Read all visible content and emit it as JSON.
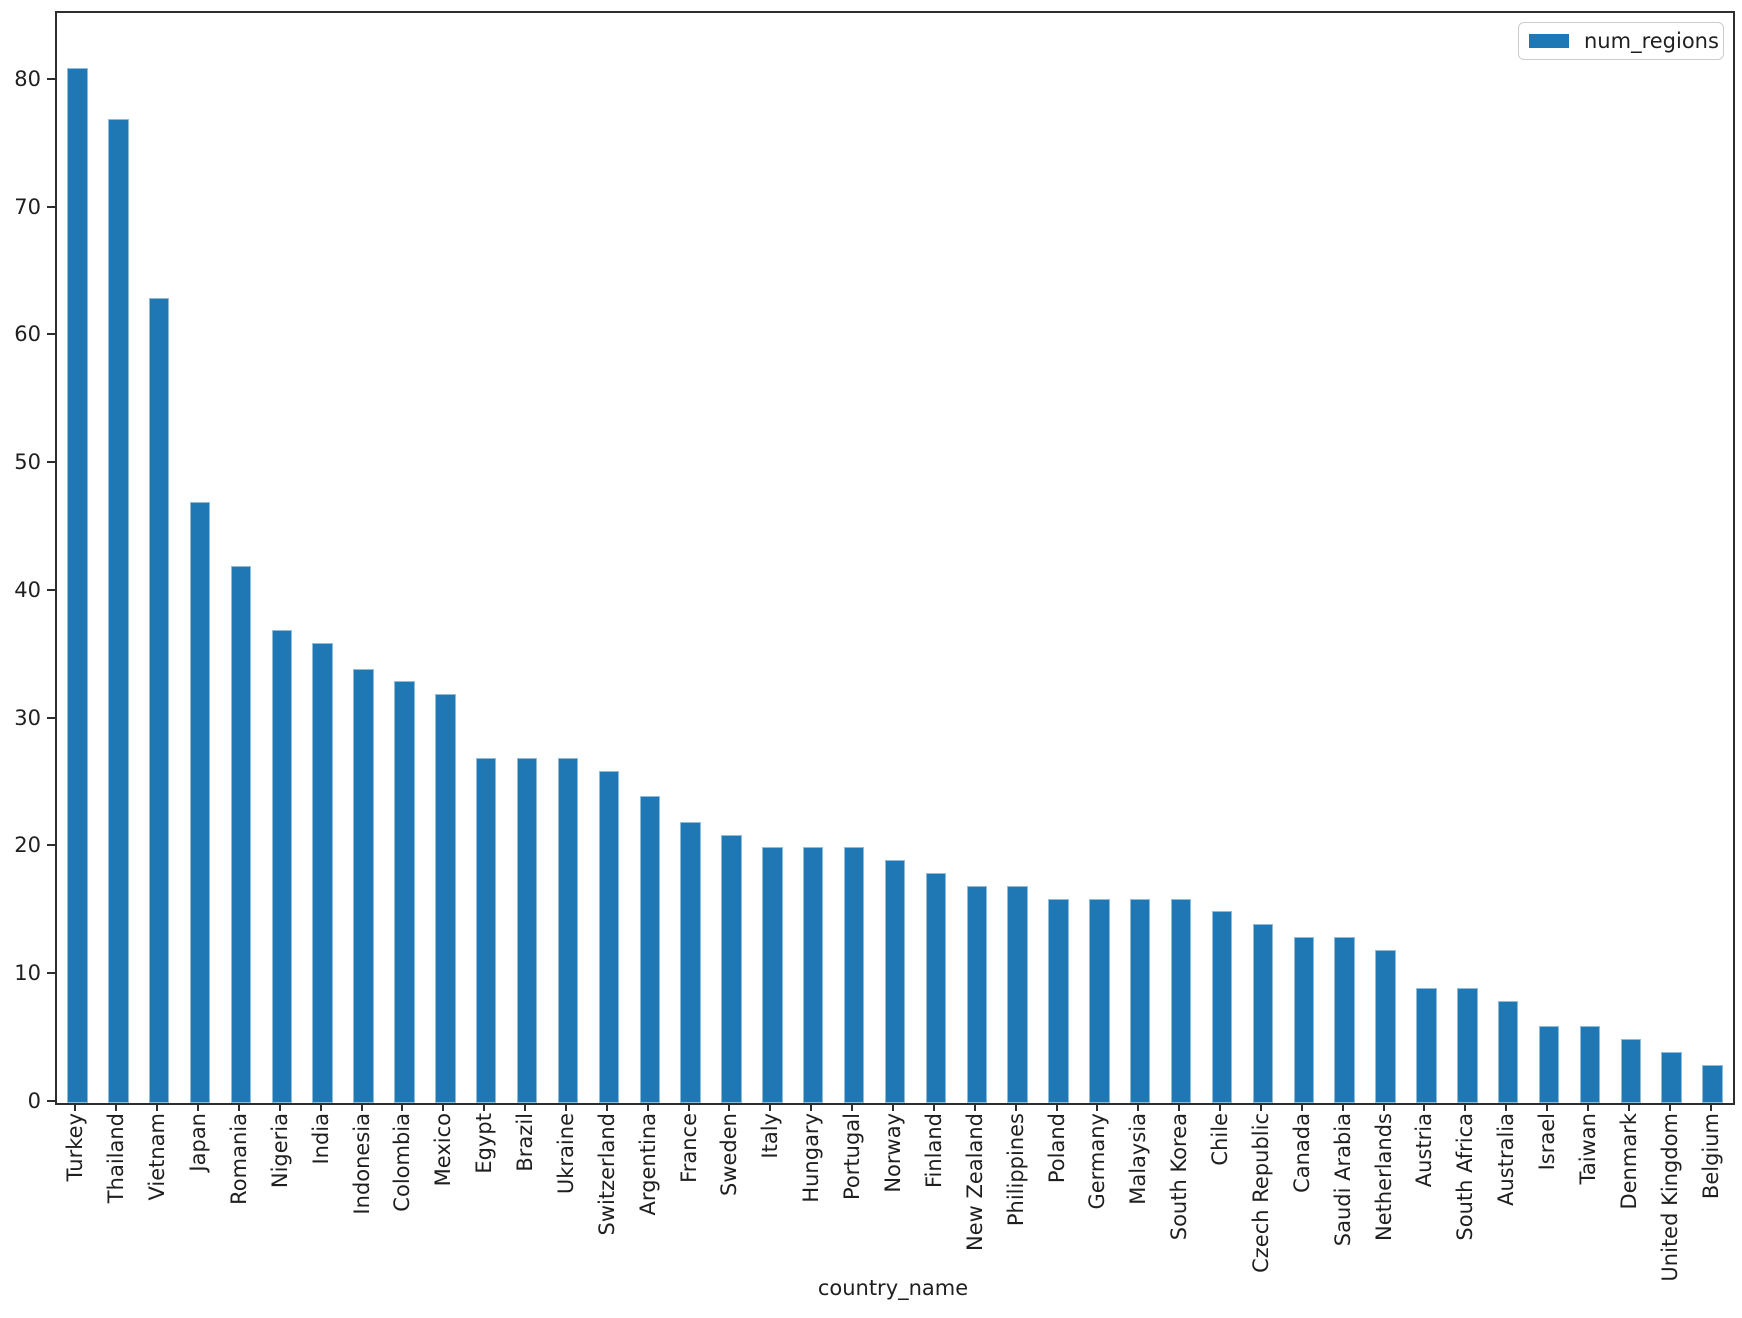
{
  "figure": {
    "background": "#ffffff",
    "xlabel": "country_name",
    "legend": {
      "label": "num_regions",
      "swatch_color": "#1f77b4",
      "position": "upper right"
    }
  },
  "chart_data": {
    "type": "bar",
    "title": "",
    "xlabel": "country_name",
    "ylabel": "",
    "ylim": [
      0,
      85.3
    ],
    "yticks": [
      0,
      10,
      20,
      30,
      40,
      50,
      60,
      70,
      80
    ],
    "grid": false,
    "legend_position": "upper right",
    "bar_color": "#1f77b4",
    "categories": [
      "Turkey",
      "Thailand",
      "Vietnam",
      "Japan",
      "Romania",
      "Nigeria",
      "India",
      "Indonesia",
      "Colombia",
      "Mexico",
      "Egypt",
      "Brazil",
      "Ukraine",
      "Switzerland",
      "Argentina",
      "France",
      "Sweden",
      "Italy",
      "Hungary",
      "Portugal",
      "Norway",
      "Finland",
      "New Zealand",
      "Philippines",
      "Poland",
      "Germany",
      "Malaysia",
      "South Korea",
      "Chile",
      "Czech Republic",
      "Canada",
      "Saudi Arabia",
      "Netherlands",
      "Austria",
      "South Africa",
      "Australia",
      "Israel",
      "Taiwan",
      "Denmark",
      "United Kingdom",
      "Belgium"
    ],
    "series": [
      {
        "name": "num_regions",
        "values": [
          81,
          77,
          63,
          47,
          42,
          37,
          36,
          34,
          33,
          32,
          27,
          27,
          27,
          26,
          24,
          22,
          21,
          20,
          20,
          20,
          19,
          18,
          17,
          17,
          16,
          16,
          16,
          16,
          15,
          14,
          13,
          13,
          12,
          9,
          9,
          8,
          6,
          6,
          5,
          4,
          3
        ]
      }
    ]
  }
}
